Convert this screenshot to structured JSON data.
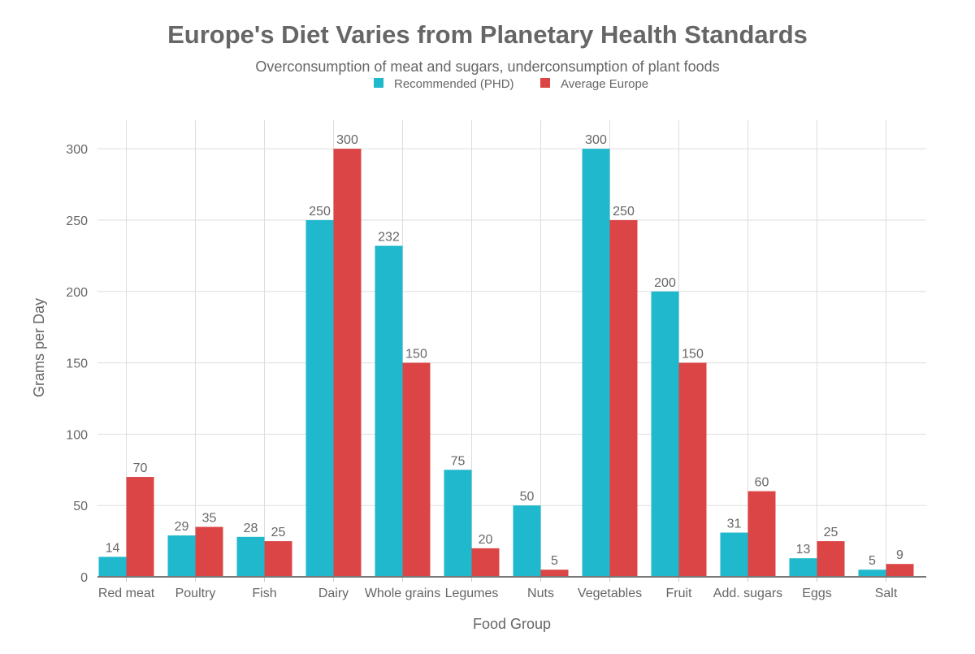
{
  "chart_data": {
    "type": "bar",
    "title": "Europe's Diet Varies from Planetary Health Standards",
    "subtitle": "Overconsumption of meat and sugars, underconsumption of plant foods",
    "xlabel": "Food Group",
    "ylabel": "Grams per Day",
    "ylim": [
      0,
      320
    ],
    "yticks": [
      0,
      50,
      100,
      150,
      200,
      250,
      300
    ],
    "grid": true,
    "legend_placement": "top-center",
    "categories": [
      "Red meat",
      "Poultry",
      "Fish",
      "Dairy",
      "Whole grains",
      "Legumes",
      "Nuts",
      "Vegetables",
      "Fruit",
      "Add. sugars",
      "Eggs",
      "Salt"
    ],
    "series": [
      {
        "name": "Recommended (PHD)",
        "color": "#1FB8CD",
        "values": [
          14,
          29,
          28,
          250,
          232,
          75,
          50,
          300,
          200,
          31,
          13,
          5
        ]
      },
      {
        "name": "Average Europe",
        "color": "#DB4545",
        "values": [
          70,
          35,
          25,
          300,
          150,
          20,
          5,
          250,
          150,
          60,
          25,
          9
        ]
      }
    ]
  }
}
